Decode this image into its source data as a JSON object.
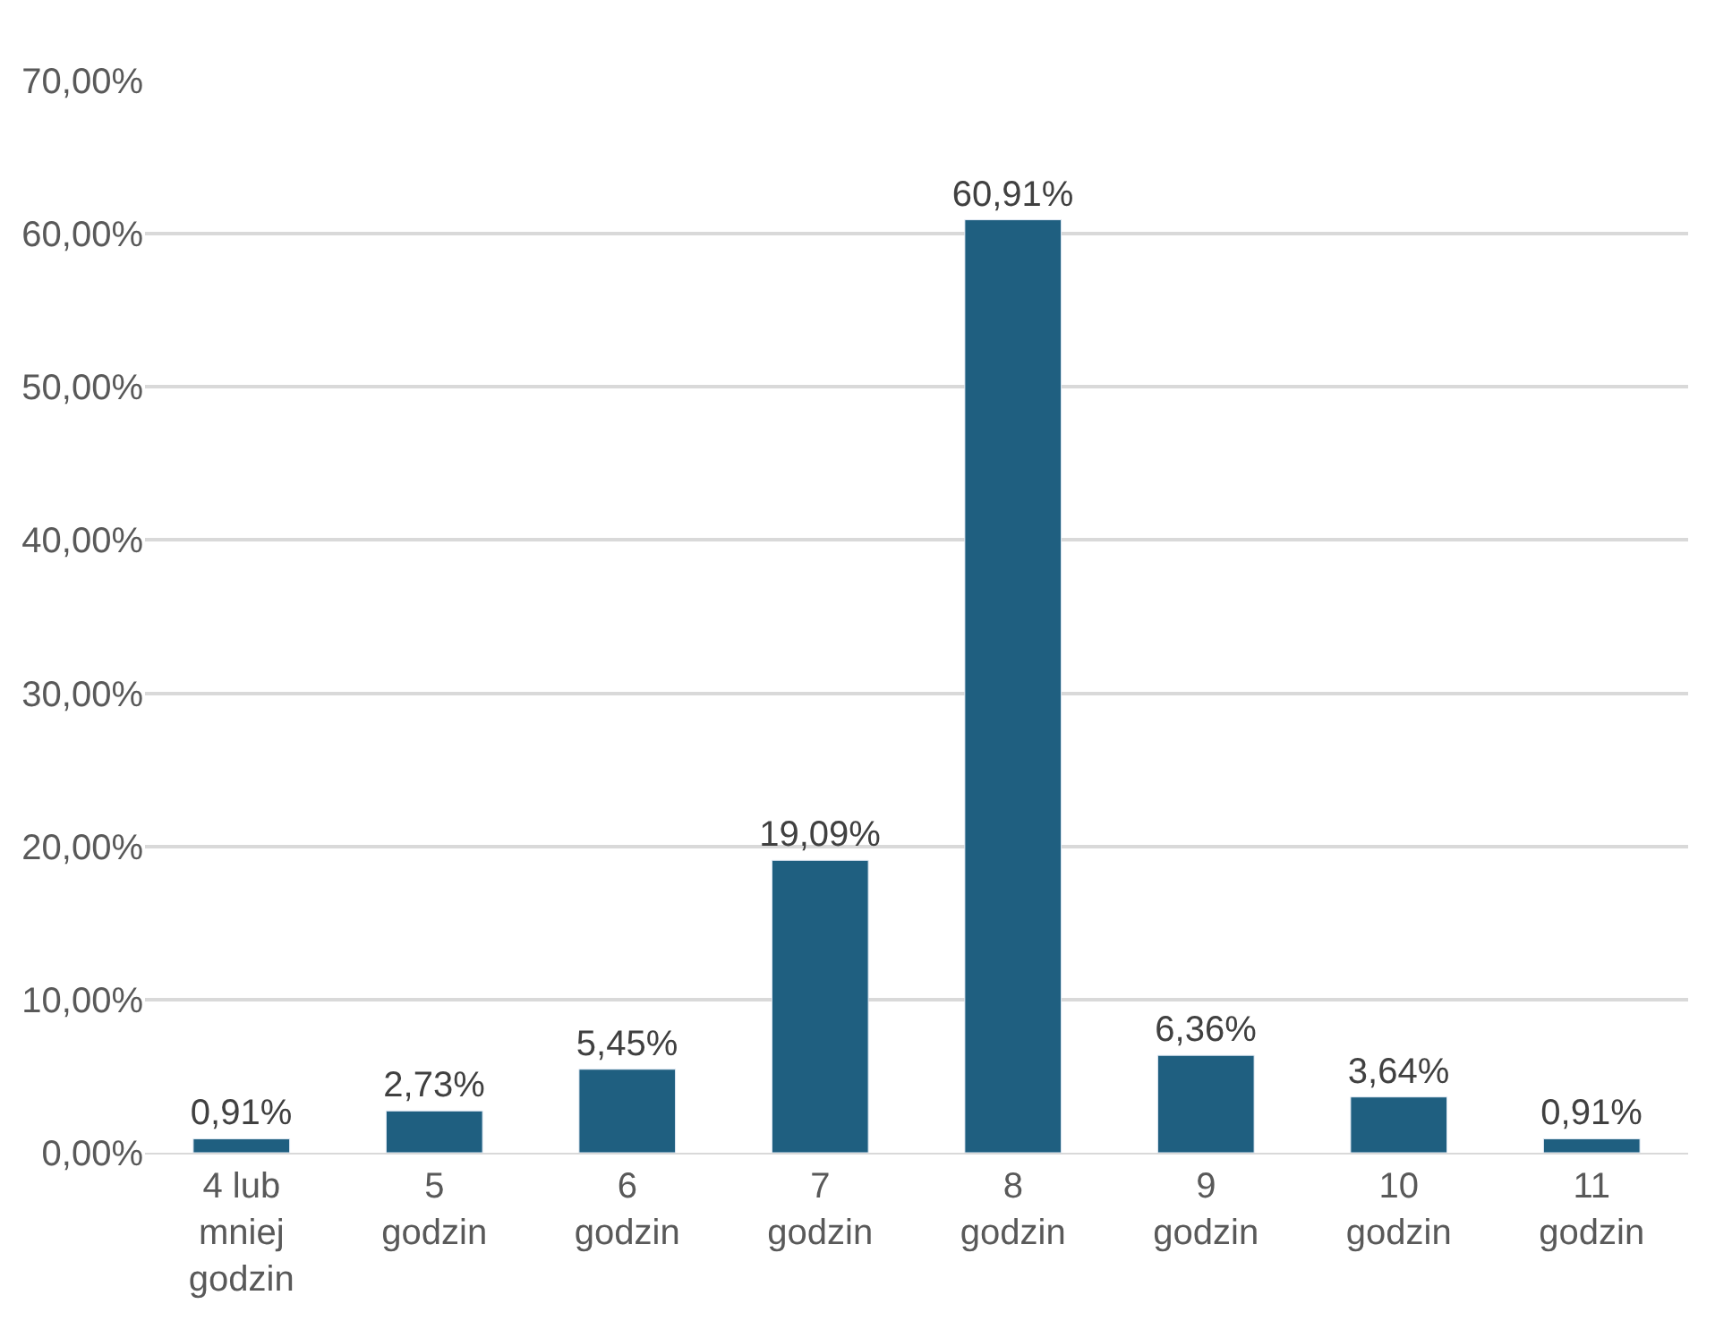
{
  "chart_data": {
    "type": "bar",
    "categories": [
      "4 lub mniej godzin",
      "5 godzin",
      "6 godzin",
      "7 godzin",
      "8 godzin",
      "9 godzin",
      "10 godzin",
      "11 godzin"
    ],
    "values": [
      0.91,
      2.73,
      5.45,
      19.09,
      60.91,
      6.36,
      3.64,
      0.91
    ],
    "value_labels": [
      "0,91%",
      "2,73%",
      "5,45%",
      "19,09%",
      "60,91%",
      "6,36%",
      "3,64%",
      "0,91%"
    ],
    "color": "#1f5f80",
    "ylim": [
      0,
      70
    ],
    "yticks": [
      {
        "value": 0,
        "label": "0,00%"
      },
      {
        "value": 10,
        "label": "10,00%"
      },
      {
        "value": 20,
        "label": "20,00%"
      },
      {
        "value": 30,
        "label": "30,00%"
      },
      {
        "value": 40,
        "label": "40,00%"
      },
      {
        "value": 50,
        "label": "50,00%"
      },
      {
        "value": 60,
        "label": "60,00%"
      },
      {
        "value": 70,
        "label": "70,00%"
      }
    ],
    "grid": "y"
  }
}
